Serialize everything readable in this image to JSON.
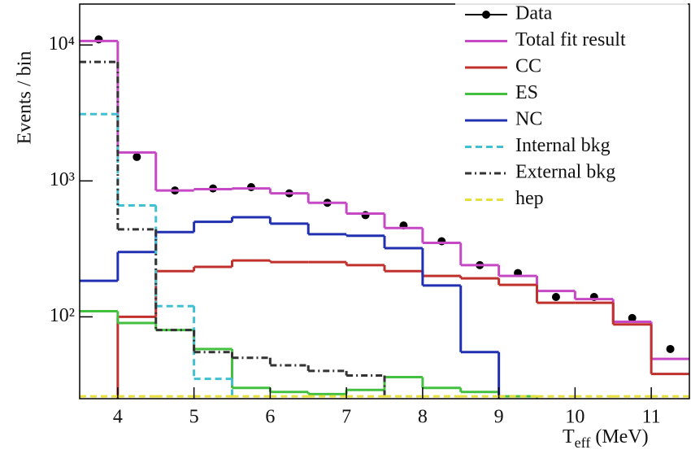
{
  "chart_data": {
    "type": "histogram",
    "ylabel": "Events / bin",
    "xlabel_main": "T",
    "xlabel_sub": "eff",
    "xlabel_unit": "(MeV)",
    "log_y": true,
    "legend": "top-right",
    "bins": [
      3.5,
      4,
      4.5,
      5,
      5.5,
      6,
      6.5,
      7,
      7.5,
      8,
      8.5,
      9,
      9.5,
      10,
      10.5,
      11,
      11.5
    ],
    "xlim": [
      3.5,
      11.5
    ],
    "xticks": [
      4,
      5,
      6,
      7,
      8,
      9,
      10,
      11
    ],
    "ylim": [
      25,
      20000
    ],
    "yticks": [
      {
        "value": 100,
        "label": "10²"
      },
      {
        "value": 1000,
        "label": "10³"
      },
      {
        "value": 10000,
        "label": "10⁴"
      }
    ],
    "series": [
      {
        "name": "Data",
        "color": "#000000",
        "style": "points",
        "values": [
          11000,
          1500,
          850,
          880,
          900,
          810,
          690,
          560,
          470,
          360,
          240,
          210,
          140,
          140,
          98,
          58
        ]
      },
      {
        "name": "Total fit result",
        "color": "#c548c5",
        "style": "solid",
        "values": [
          10700,
          1620,
          850,
          870,
          880,
          810,
          690,
          575,
          450,
          350,
          240,
          200,
          155,
          135,
          92,
          49
        ]
      },
      {
        "name": "CC",
        "color": "#c0302c",
        "style": "solid",
        "values": [
          null,
          100,
          217,
          233,
          260,
          253,
          253,
          240,
          217,
          200,
          192,
          172,
          127,
          127,
          88,
          38
        ]
      },
      {
        "name": "ES",
        "color": "#44c040",
        "style": "solid",
        "values": [
          110,
          90,
          80,
          58,
          30,
          28,
          27,
          29,
          36,
          30,
          28,
          26,
          null,
          null,
          null,
          null
        ]
      },
      {
        "name": "NC",
        "color": "#2030b0",
        "style": "solid",
        "values": [
          184,
          300,
          420,
          500,
          540,
          485,
          405,
          395,
          320,
          170,
          55,
          null,
          null,
          null,
          null,
          null
        ]
      },
      {
        "name": "Internal bkg",
        "color": "#40c0d0",
        "style": "dash",
        "values": [
          3100,
          660,
          120,
          35,
          null,
          null,
          null,
          null,
          null,
          null,
          null,
          null,
          null,
          null,
          null,
          null
        ]
      },
      {
        "name": "External bkg",
        "color": "#333333",
        "style": "dashdot",
        "values": [
          7500,
          440,
          80,
          55,
          50,
          44,
          40,
          37,
          null,
          null,
          null,
          null,
          null,
          null,
          null,
          null
        ]
      },
      {
        "name": "hep",
        "color": "#e6df3c",
        "style": "dash",
        "values": [
          26,
          26,
          26,
          26,
          26,
          26,
          26,
          26,
          26,
          26,
          26,
          26,
          26,
          26,
          26,
          26
        ]
      }
    ]
  }
}
